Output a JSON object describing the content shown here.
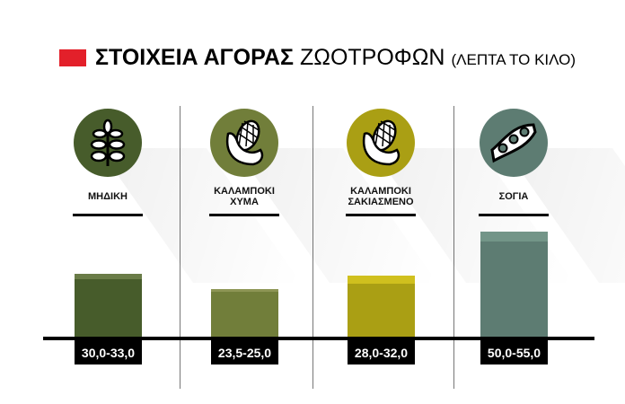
{
  "title": {
    "bold": "ΣΤΟΙΧΕΙΑ ΑΓΟΡΑΣ",
    "regular": "ΖΩΟΤΡΟΦΩΝ",
    "unit": "(ΛΕΠΤΑ ΤΟ ΚΙΛΟ)",
    "accent_color": "#e3202a"
  },
  "chart_data": {
    "type": "bar",
    "title": "ΣΤΟΙΧΕΙΑ ΑΓΟΡΑΣ ΖΩΟΤΡΟΦΩΝ (ΛΕΠΤΑ ΤΟ ΚΙΛΟ)",
    "categories": [
      "ΜΗΔΙΚΗ",
      "ΚΑΛΑΜΠΟΚΙ ΧΥΜΑ",
      "ΚΑΛΑΜΠΟΚΙ ΣΑΚΙΑΣΜΕΝΟ",
      "ΣΟΓΙΑ"
    ],
    "category_lines": [
      [
        "ΜΗΔΙΚΗ"
      ],
      [
        "ΚΑΛΑΜΠΟΚΙ",
        "ΧΥΜΑ"
      ],
      [
        "ΚΑΛΑΜΠΟΚΙ",
        "ΣΑΚΙΑΣΜΕΝΟ"
      ],
      [
        "ΣΟΓΙΑ"
      ]
    ],
    "min": [
      30.0,
      23.5,
      28.0,
      50.0
    ],
    "max": [
      33.0,
      25.0,
      32.0,
      55.0
    ],
    "value_labels": [
      "30,0-33,0",
      "23,5-25,0",
      "28,0-32,0",
      "50,0-55,0"
    ],
    "icons": [
      "alfalfa-icon",
      "corn-icon",
      "corn-icon",
      "soybean-icon"
    ],
    "colors": [
      "#475c2b",
      "#717e3a",
      "#aa9f14",
      "#5d7c72"
    ],
    "band_colors": [
      "#6a7c48",
      "#8d9555",
      "#d0c01e",
      "#739588"
    ],
    "grid": false
  }
}
